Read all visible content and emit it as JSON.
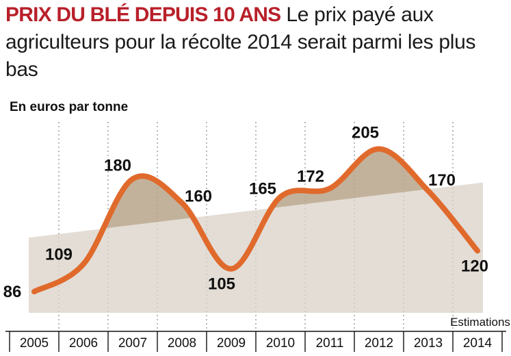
{
  "headline": {
    "kicker": "PRIX DU BLÉ DEPUIS 10 ANS",
    "text": "Le prix payé aux agriculteurs pour la récolte 2014 serait parmi les plus bas"
  },
  "chart_data": {
    "type": "line",
    "ylabel": "En euros par tonne",
    "categories": [
      "2005",
      "2006",
      "2007",
      "2008",
      "2009",
      "2010",
      "2011",
      "2012",
      "2013",
      "2014"
    ],
    "series": [
      {
        "values": [
          86,
          109,
          180,
          160,
          105,
          165,
          172,
          205,
          170,
          120
        ]
      }
    ],
    "data_labels": [
      "86",
      "109",
      "180",
      "160",
      "105",
      "165",
      "172",
      "205",
      "170",
      "120"
    ],
    "trend": {
      "start": 131,
      "end": 177
    },
    "estimate_label": "Estimations",
    "estimate_category": "2014",
    "ylim": [
      70,
      215
    ],
    "grid": "vertical-dotted",
    "colors": {
      "line": "#e06a2c",
      "fill": "#b9a48a",
      "trend": "#d9d2c8"
    }
  }
}
